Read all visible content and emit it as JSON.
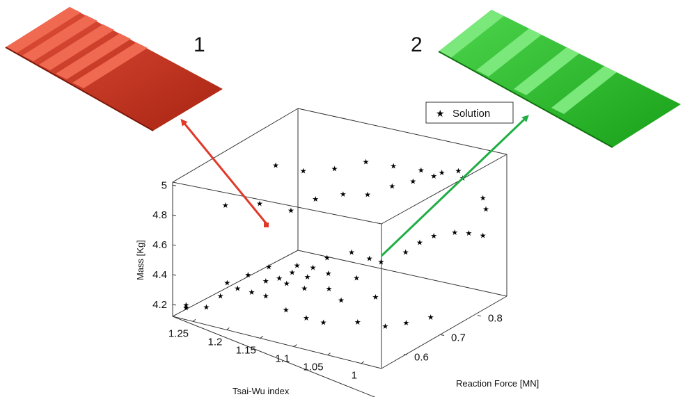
{
  "panel_labels": {
    "left": "1",
    "right": "2"
  },
  "colors": {
    "panel_1": "#d13a22",
    "panel_2": "#2bbd2b",
    "arrow_1": "#e0392a",
    "arrow_2": "#1fae44",
    "marker": "#000000"
  },
  "chart_data": {
    "type": "scatter",
    "projection": "3d",
    "title": "",
    "axes": {
      "x": {
        "label": "Tsai-Wu index",
        "range": [
          0.97,
          1.28
        ],
        "ticks": [
          1.25,
          1.2,
          1.15,
          1.1,
          1.05,
          1
        ],
        "tick_labels": [
          "1.25",
          "1.2",
          "1.15",
          "1.1",
          "1.05",
          "1"
        ]
      },
      "y": {
        "label": "Reaction Force [MN]",
        "range": [
          0.53,
          0.87
        ],
        "ticks": [
          0.6,
          0.7,
          0.8
        ],
        "tick_labels": [
          "0.6",
          "0.7",
          "0.8"
        ]
      },
      "z": {
        "label": "Mass [Kg]",
        "range": [
          4.12,
          5.02
        ],
        "ticks": [
          4.2,
          4.4,
          4.6,
          4.8,
          5
        ],
        "tick_labels": [
          "4.2",
          "4.4",
          "4.6",
          "4.8",
          "5"
        ]
      }
    },
    "grid": false,
    "legend": {
      "position": "top-right",
      "entries": [
        "Solution"
      ]
    },
    "marker": "star",
    "highlighted": [
      {
        "id": 1,
        "x": 1.25,
        "y": 0.53,
        "z": 4.8
      },
      {
        "id": 2,
        "x": 1.1,
        "y": 0.86,
        "z": 4.4
      }
    ],
    "series": [
      {
        "name": "Solution",
        "points": [
          [
            1.26,
            0.53,
            4.2
          ],
          [
            1.26,
            0.53,
            4.22
          ],
          [
            1.23,
            0.53,
            4.24
          ],
          [
            1.22,
            0.55,
            4.3
          ],
          [
            1.2,
            0.56,
            4.36
          ],
          [
            1.19,
            0.58,
            4.32
          ],
          [
            1.18,
            0.6,
            4.38
          ],
          [
            1.16,
            0.62,
            4.36
          ],
          [
            1.15,
            0.65,
            4.3
          ],
          [
            1.13,
            0.68,
            4.28
          ],
          [
            1.21,
            0.55,
            4.4
          ],
          [
            1.19,
            0.57,
            4.45
          ],
          [
            1.17,
            0.59,
            4.5
          ],
          [
            1.16,
            0.6,
            4.42
          ],
          [
            1.15,
            0.63,
            4.48
          ],
          [
            1.14,
            0.64,
            4.4
          ],
          [
            1.12,
            0.66,
            4.42
          ],
          [
            1.1,
            0.7,
            4.36
          ],
          [
            1.08,
            0.73,
            4.45
          ],
          [
            1.06,
            0.76,
            4.5
          ],
          [
            1.05,
            0.78,
            4.55
          ],
          [
            1.04,
            0.8,
            4.58
          ],
          [
            1.02,
            0.82,
            4.6
          ],
          [
            1.01,
            0.84,
            4.58
          ],
          [
            1.0,
            0.86,
            4.55
          ],
          [
            1.13,
            0.58,
            4.52
          ],
          [
            1.11,
            0.6,
            4.55
          ],
          [
            1.1,
            0.62,
            4.6
          ],
          [
            1.08,
            0.65,
            4.62
          ],
          [
            1.07,
            0.68,
            4.55
          ],
          [
            1.24,
            0.6,
            4.82
          ],
          [
            1.2,
            0.62,
            4.85
          ],
          [
            1.17,
            0.65,
            4.8
          ],
          [
            1.15,
            0.68,
            4.86
          ],
          [
            1.12,
            0.7,
            4.9
          ],
          [
            1.1,
            0.73,
            4.88
          ],
          [
            1.08,
            0.76,
            4.92
          ],
          [
            1.06,
            0.78,
            4.95
          ],
          [
            1.04,
            0.8,
            4.98
          ],
          [
            1.02,
            0.83,
            5.0
          ],
          [
            1.22,
            0.7,
            4.98
          ],
          [
            1.19,
            0.72,
            4.95
          ],
          [
            1.16,
            0.75,
            4.96
          ],
          [
            1.13,
            0.78,
            5.0
          ],
          [
            1.1,
            0.8,
            4.98
          ],
          [
            1.07,
            0.82,
            4.96
          ],
          [
            1.05,
            0.84,
            4.94
          ],
          [
            1.03,
            0.86,
            4.9
          ],
          [
            1.0,
            0.86,
            4.8
          ],
          [
            0.99,
            0.85,
            4.75
          ],
          [
            1.18,
            0.6,
            4.28
          ],
          [
            1.15,
            0.6,
            4.22
          ],
          [
            1.12,
            0.6,
            4.2
          ],
          [
            1.1,
            0.61,
            4.18
          ],
          [
            1.06,
            0.63,
            4.2
          ],
          [
            1.03,
            0.65,
            4.18
          ],
          [
            1.01,
            0.67,
            4.2
          ],
          [
            0.99,
            0.7,
            4.22
          ],
          [
            1.09,
            0.64,
            4.3
          ],
          [
            1.05,
            0.66,
            4.34
          ]
        ]
      }
    ]
  }
}
